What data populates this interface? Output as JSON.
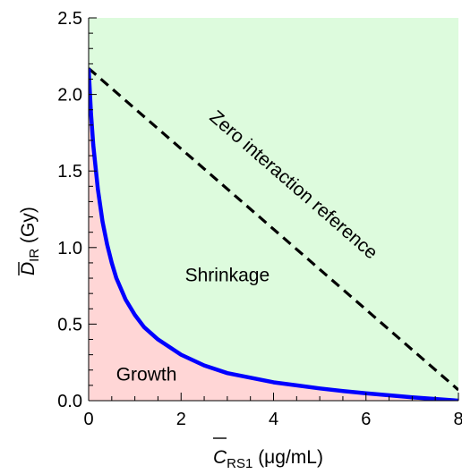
{
  "chart_data": {
    "type": "area",
    "xlabel": {
      "main": "C",
      "sub": "RS1",
      "unit": " (μg/mL)"
    },
    "ylabel": {
      "main": "D",
      "sub": "IR",
      "unit": " (Gy)"
    },
    "xlim": [
      0,
      8
    ],
    "ylim": [
      0,
      2.5
    ],
    "x_ticks": [
      0,
      2,
      4,
      6,
      8
    ],
    "x_tick_labels": [
      "0",
      "2",
      "4",
      "6",
      "8"
    ],
    "y_ticks": [
      0,
      0.5,
      1.0,
      1.5,
      2.0,
      2.5
    ],
    "y_tick_labels": [
      "0.0",
      "0.5",
      "1.0",
      "1.5",
      "2.0",
      "2.5"
    ],
    "grid": false,
    "colors": {
      "upper_region": "#ddfbdd",
      "lower_region": "#ffd6d6",
      "boundary": "#0000ff",
      "reference": "#000000"
    },
    "series": [
      {
        "label": "",
        "style": "solid",
        "x": [
          0,
          0.05,
          0.1,
          0.2,
          0.3,
          0.4,
          0.5,
          0.6,
          0.8,
          1.0,
          1.2,
          1.5,
          2.0,
          2.5,
          3.0,
          3.5,
          4.0,
          4.5,
          5.0,
          5.5,
          6.0,
          6.5,
          7.0,
          7.5,
          8.0
        ],
        "y": [
          2.17,
          1.88,
          1.67,
          1.38,
          1.17,
          1.02,
          0.9,
          0.8,
          0.66,
          0.56,
          0.48,
          0.4,
          0.3,
          0.23,
          0.18,
          0.15,
          0.12,
          0.1,
          0.08,
          0.063,
          0.048,
          0.035,
          0.022,
          0.011,
          0.0
        ]
      },
      {
        "label": "Zero interaction reference",
        "style": "dashed",
        "x": [
          0,
          8
        ],
        "y": [
          2.17,
          0.07
        ]
      }
    ],
    "annotations": [
      {
        "text": "Shrinkage",
        "x": 3.0,
        "y": 0.78
      },
      {
        "text": "Growth",
        "x": 1.25,
        "y": 0.13
      },
      {
        "text": "Zero interaction reference",
        "x": 4.35,
        "y": 1.38,
        "along": "reference"
      }
    ]
  }
}
